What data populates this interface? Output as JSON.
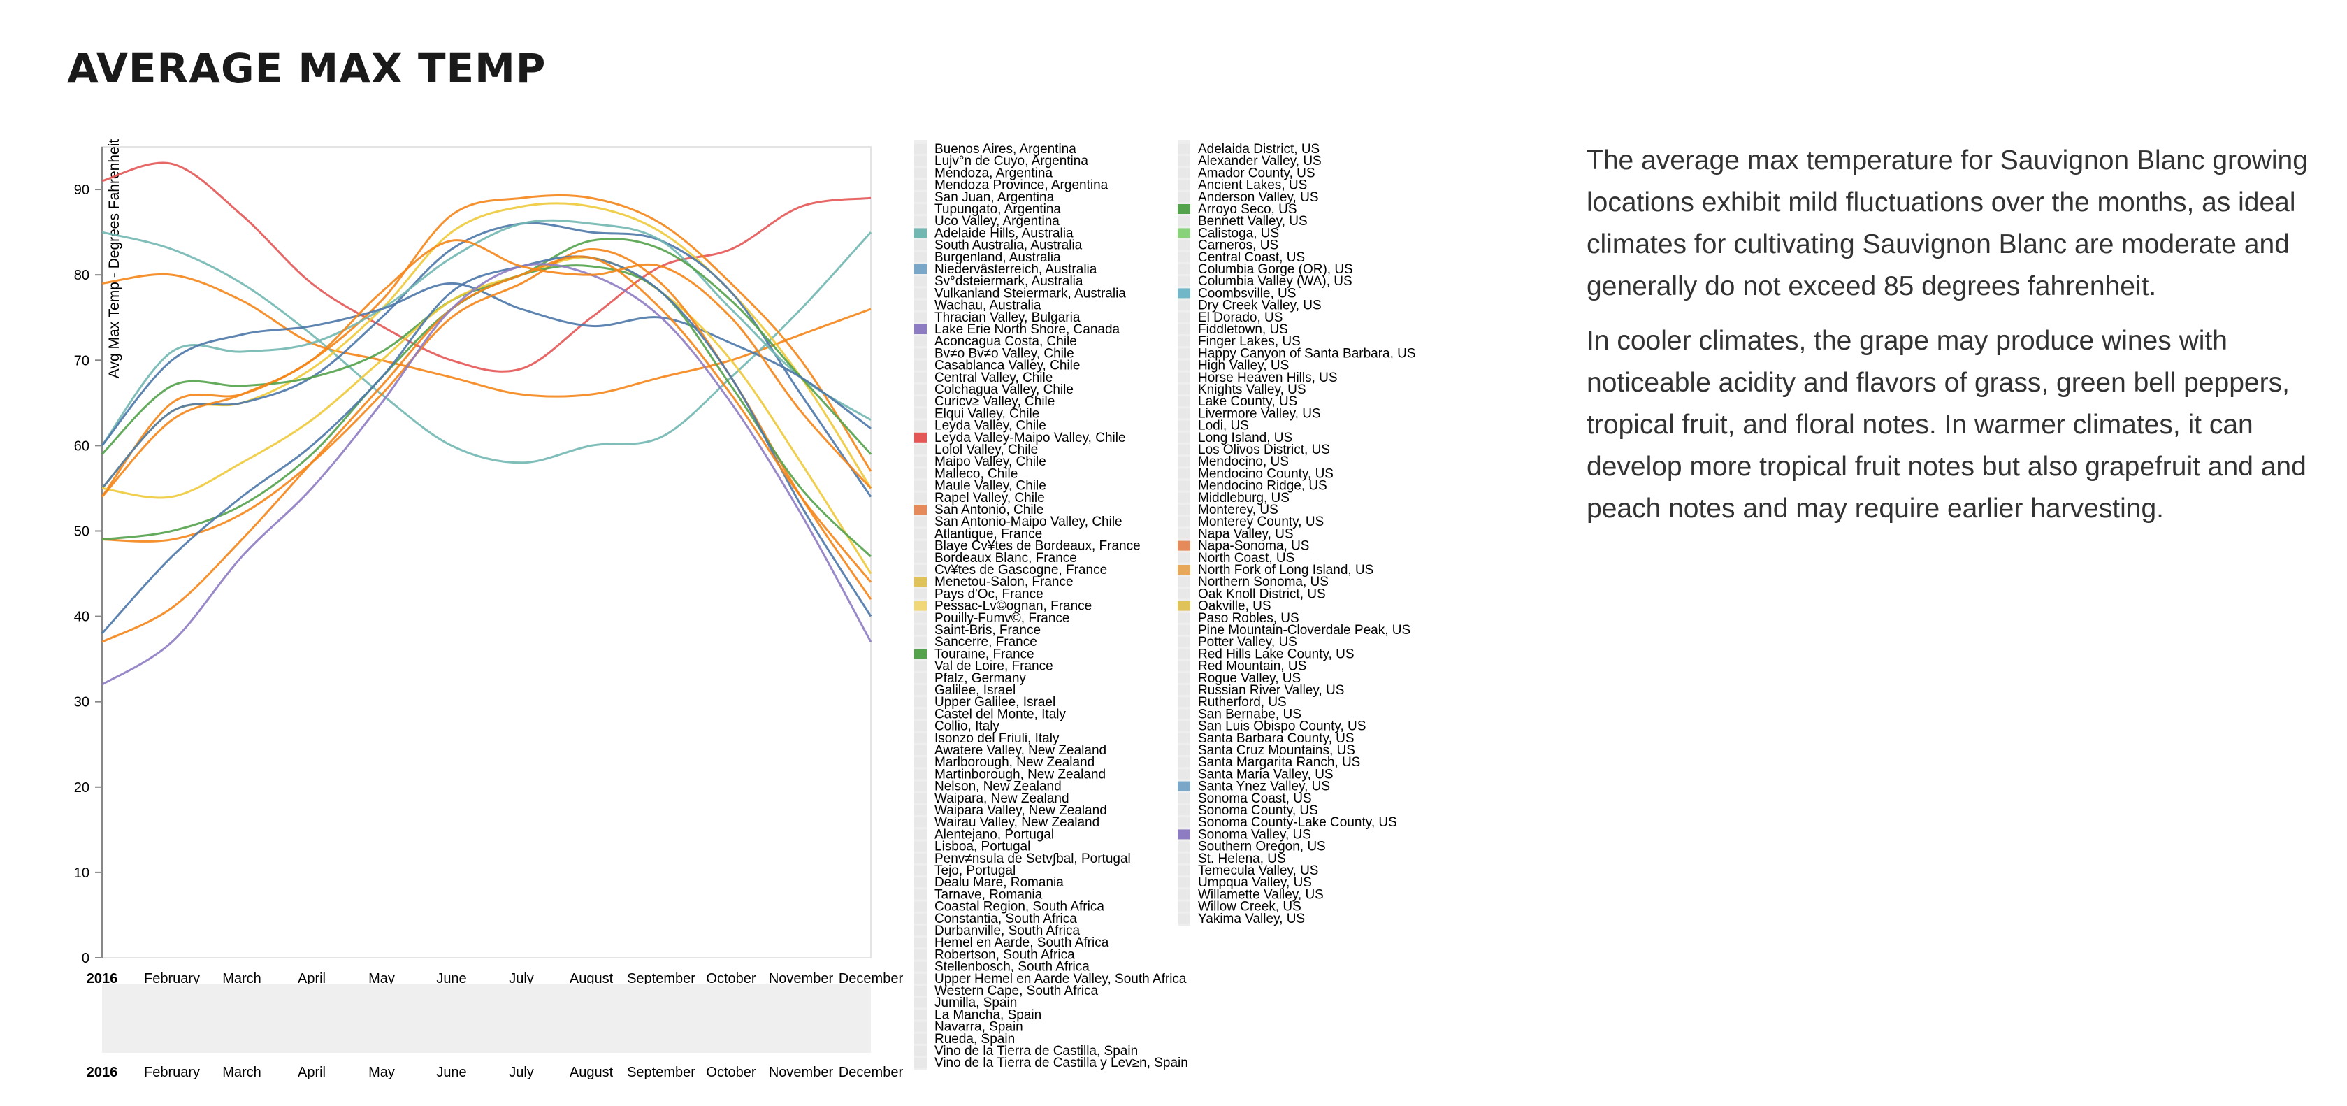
{
  "page": {
    "title": "AVERAGE MAX TEMP",
    "paragraphs": [
      "The average max temperature for Sauvignon Blanc growing locations exhibit mild fluctuations over the months, as ideal climates for cultivating Sauvignon Blanc are moderate and generally do not exceed 85 degrees fahrenheit.",
      "In cooler climates, the grape may produce wines with noticeable acidity and flavors of grass, green bell peppers, tropical fruit, and floral notes. In warmer climates, it can develop more tropical fruit notes but also grapefruit and and peach notes and may require earlier harvesting."
    ]
  },
  "chart_data": {
    "type": "line",
    "ylabel": "Avg Max Temp - Degrees Fahrenheit",
    "xlabel": "",
    "ylim": [
      0,
      95
    ],
    "yticks": [
      0,
      10,
      20,
      30,
      40,
      50,
      60,
      70,
      80,
      90
    ],
    "categories": [
      "2016",
      "February",
      "March",
      "April",
      "May",
      "June",
      "July",
      "August",
      "September",
      "October",
      "November",
      "December"
    ],
    "overview_ticks": [
      "2016",
      "February",
      "March",
      "April",
      "May",
      "June",
      "July",
      "August",
      "September",
      "October",
      "November",
      "December"
    ],
    "grid": false,
    "legend_placement": "right",
    "series": [
      {
        "color": "#e45756",
        "values": [
          91,
          93,
          87,
          79,
          74,
          70,
          69,
          75,
          81,
          83,
          88,
          89
        ]
      },
      {
        "color": "#f58518",
        "values": [
          79,
          80,
          77,
          72,
          70,
          68,
          66,
          66,
          68,
          70,
          73,
          76
        ]
      },
      {
        "color": "#72b7b2",
        "values": [
          85,
          83,
          79,
          73,
          66,
          60,
          58,
          60,
          61,
          68,
          76,
          85
        ]
      },
      {
        "color": "#f58518",
        "values": [
          54,
          65,
          66,
          70,
          77,
          87,
          89,
          89,
          86,
          79,
          70,
          57
        ]
      },
      {
        "color": "#eeca3b",
        "values": [
          55,
          64,
          65,
          69,
          76,
          85,
          88,
          88,
          85,
          78,
          68,
          55
        ]
      },
      {
        "color": "#4c78a8",
        "values": [
          55,
          64,
          65,
          68,
          75,
          83,
          86,
          85,
          84,
          78,
          66,
          54
        ]
      },
      {
        "color": "#72b7b2",
        "values": [
          60,
          71,
          71,
          72,
          76,
          82,
          86,
          86,
          84,
          76,
          68,
          63
        ]
      },
      {
        "color": "#54a24b",
        "values": [
          59,
          67,
          67,
          68,
          71,
          77,
          80,
          84,
          83,
          77,
          68,
          59
        ]
      },
      {
        "color": "#4c78a8",
        "values": [
          60,
          70,
          73,
          74,
          76,
          79,
          76,
          74,
          75,
          72,
          68,
          62
        ]
      },
      {
        "color": "#eeca3b",
        "values": [
          55,
          54,
          58,
          63,
          70,
          77,
          80,
          82,
          78,
          70,
          58,
          45
        ]
      },
      {
        "color": "#f58518",
        "values": [
          49,
          49,
          52,
          58,
          66,
          75,
          79,
          83,
          79,
          68,
          54,
          42
        ]
      },
      {
        "color": "#54a24b",
        "values": [
          49,
          50,
          53,
          59,
          68,
          76,
          80,
          81,
          78,
          67,
          55,
          47
        ]
      },
      {
        "color": "#4c78a8",
        "values": [
          38,
          47,
          54,
          60,
          68,
          78,
          81,
          82,
          78,
          68,
          53,
          40
        ]
      },
      {
        "color": "#f58518",
        "values": [
          37,
          41,
          49,
          58,
          67,
          76,
          80,
          82,
          76,
          66,
          54,
          44
        ]
      },
      {
        "color": "#8e7cc3",
        "values": [
          32,
          37,
          47,
          55,
          65,
          76,
          81,
          80,
          75,
          65,
          52,
          37
        ]
      },
      {
        "color": "#f58518",
        "values": [
          54,
          63,
          66,
          70,
          78,
          84,
          81,
          80,
          81,
          75,
          64,
          55
        ]
      }
    ],
    "legend_col1": [
      {
        "label": "Buenos Aires, Argentina",
        "color": "#e8e8e8"
      },
      {
        "label": "Lujv°n de Cuyo, Argentina",
        "color": "#e8e8e8"
      },
      {
        "label": "Mendoza, Argentina",
        "color": "#e8e8e8"
      },
      {
        "label": "Mendoza Province, Argentina",
        "color": "#e8e8e8"
      },
      {
        "label": "San Juan, Argentina",
        "color": "#e8e8e8"
      },
      {
        "label": "Tupungato, Argentina",
        "color": "#e8e8e8"
      },
      {
        "label": "Uco Valley, Argentina",
        "color": "#e8e8e8"
      },
      {
        "label": "Adelaide Hills, Australia",
        "color": "#72b7b2"
      },
      {
        "label": "South Australia, Australia",
        "color": "#e8e8e8"
      },
      {
        "label": "Burgenland, Australia",
        "color": "#e8e8e8"
      },
      {
        "label": "Niedervâsterreich, Australia",
        "color": "#7aa6c8"
      },
      {
        "label": "Sv°dsteiermark, Australia",
        "color": "#e8e8e8"
      },
      {
        "label": "Vulkanland Steiermark, Australia",
        "color": "#e8e8e8"
      },
      {
        "label": "Wachau, Australia",
        "color": "#e8e8e8"
      },
      {
        "label": "Thracian Valley, Bulgaria",
        "color": "#e8e8e8"
      },
      {
        "label": "Lake Erie North Shore, Canada",
        "color": "#8e7cc3"
      },
      {
        "label": "Aconcagua Costa, Chile",
        "color": "#e8e8e8"
      },
      {
        "label": "Bv≠o Bv≠o Valley, Chile",
        "color": "#e8e8e8"
      },
      {
        "label": "Casablanca Valley, Chile",
        "color": "#e8e8e8"
      },
      {
        "label": "Central Valley, Chile",
        "color": "#e8e8e8"
      },
      {
        "label": "Colchagua Valley, Chile",
        "color": "#e8e8e8"
      },
      {
        "label": "Curicv≥ Valley, Chile",
        "color": "#e8e8e8"
      },
      {
        "label": "Elqui Valley, Chile",
        "color": "#e8e8e8"
      },
      {
        "label": "Leyda Valley, Chile",
        "color": "#e8e8e8"
      },
      {
        "label": "Leyda Valley-Maipo Valley, Chile",
        "color": "#e45756"
      },
      {
        "label": "Lolol Valley, Chile",
        "color": "#e8e8e8"
      },
      {
        "label": "Maipo Valley, Chile",
        "color": "#e8e8e8"
      },
      {
        "label": "Malleco, Chile",
        "color": "#e8e8e8"
      },
      {
        "label": "Maule Valley, Chile",
        "color": "#e8e8e8"
      },
      {
        "label": "Rapel Valley, Chile",
        "color": "#e8e8e8"
      },
      {
        "label": "San Antonio, Chile",
        "color": "#e58a5a"
      },
      {
        "label": "San Antonio-Maipo Valley, Chile",
        "color": "#e8e8e8"
      },
      {
        "label": "Atlantique, France",
        "color": "#e8e8e8"
      },
      {
        "label": "Blaye Cv¥tes de Bordeaux, France",
        "color": "#e8e8e8"
      },
      {
        "label": "Bordeaux Blanc, France",
        "color": "#e8e8e8"
      },
      {
        "label": "Cv¥tes de Gascogne, France",
        "color": "#e8e8e8"
      },
      {
        "label": "Menetou-Salon, France",
        "color": "#e0c25a"
      },
      {
        "label": "Pays d'Oc, France",
        "color": "#e8e8e8"
      },
      {
        "label": "Pessac-Lv©ognan, France",
        "color": "#f0d878"
      },
      {
        "label": "Pouilly-Fumv©, France",
        "color": "#e8e8e8"
      },
      {
        "label": "Saint-Bris, France",
        "color": "#e8e8e8"
      },
      {
        "label": "Sancerre, France",
        "color": "#e8e8e8"
      },
      {
        "label": "Touraine, France",
        "color": "#54a24b"
      },
      {
        "label": "Val de Loire, France",
        "color": "#e8e8e8"
      },
      {
        "label": "Pfalz, Germany",
        "color": "#e8e8e8"
      },
      {
        "label": "Galilee, Israel",
        "color": "#e8e8e8"
      },
      {
        "label": "Upper Galilee, Israel",
        "color": "#e8e8e8"
      },
      {
        "label": "Castel del Monte, Italy",
        "color": "#e8e8e8"
      },
      {
        "label": "Collio, Italy",
        "color": "#e8e8e8"
      },
      {
        "label": "Isonzo del Friuli, Italy",
        "color": "#e8e8e8"
      },
      {
        "label": "Awatere Valley, New Zealand",
        "color": "#e8e8e8"
      },
      {
        "label": "Marlborough, New Zealand",
        "color": "#e8e8e8"
      },
      {
        "label": "Martinborough, New Zealand",
        "color": "#e8e8e8"
      },
      {
        "label": "Nelson, New Zealand",
        "color": "#e8e8e8"
      },
      {
        "label": "Waipara, New Zealand",
        "color": "#e8e8e8"
      },
      {
        "label": "Waipara Valley, New Zealand",
        "color": "#e8e8e8"
      },
      {
        "label": "Wairau Valley, New Zealand",
        "color": "#e8e8e8"
      },
      {
        "label": "Alentejano, Portugal",
        "color": "#e8e8e8"
      },
      {
        "label": "Lisboa, Portugal",
        "color": "#e8e8e8"
      },
      {
        "label": "Penv≠nsula de Setv∫bal, Portugal",
        "color": "#e8e8e8"
      },
      {
        "label": "Tejo, Portugal",
        "color": "#e8e8e8"
      },
      {
        "label": "Dealu Mare, Romania",
        "color": "#e8e8e8"
      },
      {
        "label": "Tarnave, Romania",
        "color": "#e8e8e8"
      },
      {
        "label": "Coastal Region, South Africa",
        "color": "#e8e8e8"
      },
      {
        "label": "Constantia, South Africa",
        "color": "#e8e8e8"
      },
      {
        "label": "Durbanville, South Africa",
        "color": "#e8e8e8"
      },
      {
        "label": "Hemel en Aarde, South Africa",
        "color": "#e8e8e8"
      },
      {
        "label": "Robertson, South Africa",
        "color": "#e8e8e8"
      },
      {
        "label": "Stellenbosch, South Africa",
        "color": "#e8e8e8"
      },
      {
        "label": "Upper Hemel en Aarde Valley, South Africa",
        "color": "#e8e8e8"
      },
      {
        "label": "Western Cape, South Africa",
        "color": "#e8e8e8"
      },
      {
        "label": "Jumilla, Spain",
        "color": "#e8e8e8"
      },
      {
        "label": "La Mancha, Spain",
        "color": "#e8e8e8"
      },
      {
        "label": "Navarra, Spain",
        "color": "#e8e8e8"
      },
      {
        "label": "Rueda, Spain",
        "color": "#e8e8e8"
      },
      {
        "label": "Vino de la Tierra de Castilla, Spain",
        "color": "#e8e8e8"
      },
      {
        "label": "Vino de la Tierra de Castilla y Lev≥n, Spain",
        "color": "#e8e8e8"
      }
    ],
    "legend_col2": [
      {
        "label": "Adelaida District, US",
        "color": "#e8e8e8"
      },
      {
        "label": "Alexander Valley, US",
        "color": "#e8e8e8"
      },
      {
        "label": "Amador County, US",
        "color": "#e8e8e8"
      },
      {
        "label": "Ancient Lakes, US",
        "color": "#e8e8e8"
      },
      {
        "label": "Anderson Valley, US",
        "color": "#e8e8e8"
      },
      {
        "label": "Arroyo Seco, US",
        "color": "#54a24b"
      },
      {
        "label": "Bennett Valley, US",
        "color": "#e8e8e8"
      },
      {
        "label": "Calistoga, US",
        "color": "#88d27a"
      },
      {
        "label": "Carneros, US",
        "color": "#e8e8e8"
      },
      {
        "label": "Central Coast, US",
        "color": "#e8e8e8"
      },
      {
        "label": "Columbia Gorge (OR), US",
        "color": "#e8e8e8"
      },
      {
        "label": "Columbia Valley (WA), US",
        "color": "#e8e8e8"
      },
      {
        "label": "Coombsville, US",
        "color": "#72b7c8"
      },
      {
        "label": "Dry Creek Valley, US",
        "color": "#e8e8e8"
      },
      {
        "label": "El Dorado, US",
        "color": "#e8e8e8"
      },
      {
        "label": "Fiddletown, US",
        "color": "#e8e8e8"
      },
      {
        "label": "Finger Lakes, US",
        "color": "#e8e8e8"
      },
      {
        "label": "Happy Canyon of Santa Barbara, US",
        "color": "#e8e8e8"
      },
      {
        "label": "High Valley, US",
        "color": "#e8e8e8"
      },
      {
        "label": "Horse Heaven Hills, US",
        "color": "#e8e8e8"
      },
      {
        "label": "Knights Valley, US",
        "color": "#e8e8e8"
      },
      {
        "label": "Lake County, US",
        "color": "#e8e8e8"
      },
      {
        "label": "Livermore Valley, US",
        "color": "#e8e8e8"
      },
      {
        "label": "Lodi, US",
        "color": "#e8e8e8"
      },
      {
        "label": "Long Island, US",
        "color": "#e8e8e8"
      },
      {
        "label": "Los Olivos District, US",
        "color": "#e8e8e8"
      },
      {
        "label": "Mendocino, US",
        "color": "#e8e8e8"
      },
      {
        "label": "Mendocino County, US",
        "color": "#e8e8e8"
      },
      {
        "label": "Mendocino Ridge, US",
        "color": "#e8e8e8"
      },
      {
        "label": "Middleburg, US",
        "color": "#e8e8e8"
      },
      {
        "label": "Monterey, US",
        "color": "#e8e8e8"
      },
      {
        "label": "Monterey County, US",
        "color": "#e8e8e8"
      },
      {
        "label": "Napa Valley, US",
        "color": "#e8e8e8"
      },
      {
        "label": "Napa-Sonoma, US",
        "color": "#e58a5a"
      },
      {
        "label": "North Coast, US",
        "color": "#e8e8e8"
      },
      {
        "label": "North Fork of Long Island, US",
        "color": "#e8a85a"
      },
      {
        "label": "Northern Sonoma, US",
        "color": "#e8e8e8"
      },
      {
        "label": "Oak Knoll District, US",
        "color": "#e8e8e8"
      },
      {
        "label": "Oakville, US",
        "color": "#e0c25a"
      },
      {
        "label": "Paso Robles, US",
        "color": "#e8e8e8"
      },
      {
        "label": "Pine Mountain-Cloverdale Peak, US",
        "color": "#e8e8e8"
      },
      {
        "label": "Potter Valley, US",
        "color": "#e8e8e8"
      },
      {
        "label": "Red Hills Lake County, US",
        "color": "#e8e8e8"
      },
      {
        "label": "Red Mountain, US",
        "color": "#e8e8e8"
      },
      {
        "label": "Rogue Valley, US",
        "color": "#e8e8e8"
      },
      {
        "label": "Russian River Valley, US",
        "color": "#e8e8e8"
      },
      {
        "label": "Rutherford, US",
        "color": "#e8e8e8"
      },
      {
        "label": "San Bernabe, US",
        "color": "#e8e8e8"
      },
      {
        "label": "San Luis Obispo County, US",
        "color": "#e8e8e8"
      },
      {
        "label": "Santa Barbara County, US",
        "color": "#e8e8e8"
      },
      {
        "label": "Santa Cruz Mountains, US",
        "color": "#e8e8e8"
      },
      {
        "label": "Santa Margarita Ranch, US",
        "color": "#e8e8e8"
      },
      {
        "label": "Santa Maria Valley, US",
        "color": "#e8e8e8"
      },
      {
        "label": "Santa Ynez Valley, US",
        "color": "#7aa6c8"
      },
      {
        "label": "Sonoma Coast, US",
        "color": "#e8e8e8"
      },
      {
        "label": "Sonoma County, US",
        "color": "#e8e8e8"
      },
      {
        "label": "Sonoma County-Lake County, US",
        "color": "#e8e8e8"
      },
      {
        "label": "Sonoma Valley, US",
        "color": "#8e7cc3"
      },
      {
        "label": "Southern Oregon, US",
        "color": "#e8e8e8"
      },
      {
        "label": "St. Helena, US",
        "color": "#e8e8e8"
      },
      {
        "label": "Temecula Valley, US",
        "color": "#e8e8e8"
      },
      {
        "label": "Umpqua Valley, US",
        "color": "#e8e8e8"
      },
      {
        "label": "Willamette Valley, US",
        "color": "#e8e8e8"
      },
      {
        "label": "Willow Creek, US",
        "color": "#e8e8e8"
      },
      {
        "label": "Yakima Valley, US",
        "color": "#e8e8e8"
      }
    ]
  }
}
